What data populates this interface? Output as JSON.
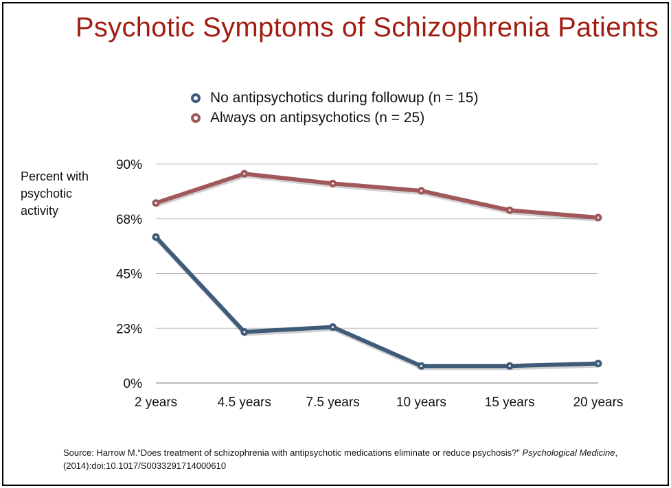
{
  "chart_data": {
    "type": "line",
    "title": "Psychotic Symptoms of Schizophrenia Patients",
    "ylabel": "Percent with psychotic activity",
    "xlabel": "",
    "categories": [
      "2 years",
      "4.5 years",
      "7.5 years",
      "10 years",
      "15 years",
      "20 years"
    ],
    "yticks": [
      0,
      22.5,
      45,
      67.5,
      90
    ],
    "ytick_labels": [
      "0%",
      "23%",
      "45%",
      "68%",
      "90%"
    ],
    "ylim": [
      0,
      90
    ],
    "grid": true,
    "legend_position": "top-center",
    "series": [
      {
        "name": "No antipsychotics during followup (n = 15)",
        "color": "#3f5b79",
        "values": [
          60,
          21,
          23,
          7,
          7,
          8
        ]
      },
      {
        "name": "Always on antipsychotics (n = 25)",
        "color": "#a1585b",
        "values": [
          74,
          86,
          82,
          79,
          71,
          68
        ]
      }
    ]
  },
  "source": {
    "text": "Source: Harrow M.“Does treatment of schizophrenia with antipsychotic medications eliminate or reduce psychosis?” ",
    "journal": "Psychological Medicine",
    "rest": ", (2014):doi:10.1017/S0033291714000610"
  }
}
